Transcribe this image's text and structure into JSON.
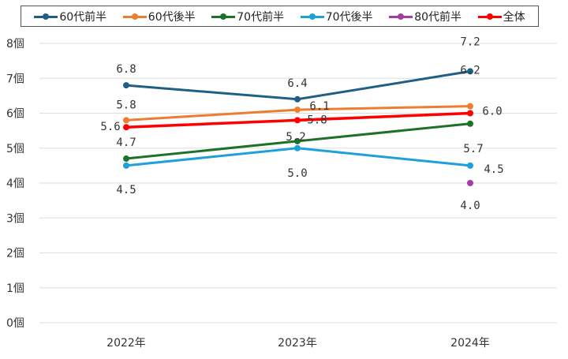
{
  "chart_data": {
    "type": "line",
    "title": "",
    "xlabel": "",
    "ylabel": "",
    "categories": [
      "2022年",
      "2023年",
      "2024年"
    ],
    "y_ticks": [
      "0個",
      "1個",
      "2個",
      "3個",
      "4個",
      "5個",
      "6個",
      "7個",
      "8個"
    ],
    "ylim": [
      0,
      8
    ],
    "grid": true,
    "legend_position": "top",
    "series": [
      {
        "name": "60代前半",
        "color": "#1f5f86",
        "values": [
          6.8,
          6.4,
          7.2
        ],
        "labels": [
          "6.8",
          "6.4",
          "7.2"
        ]
      },
      {
        "name": "60代後半",
        "color": "#ed7d31",
        "values": [
          5.8,
          6.1,
          6.2
        ],
        "labels": [
          "5.8",
          "6.1",
          "6.2"
        ]
      },
      {
        "name": "70代前半",
        "color": "#1e7128",
        "values": [
          4.7,
          5.2,
          5.7
        ],
        "labels": [
          "4.7",
          "5.2",
          "5.7"
        ]
      },
      {
        "name": "70代後半",
        "color": "#1ea1db",
        "values": [
          4.5,
          5.0,
          4.5
        ],
        "labels": [
          "4.5",
          "5.0",
          "4.5"
        ]
      },
      {
        "name": "80代前半",
        "color": "#a63ca6",
        "values": [
          null,
          null,
          4.0
        ],
        "labels": [
          "",
          "",
          "4.0"
        ]
      },
      {
        "name": "全体",
        "color": "#ff0000",
        "values": [
          5.6,
          5.8,
          6.0
        ],
        "labels": [
          "5.6",
          "5.8",
          "6.0"
        ]
      }
    ]
  }
}
